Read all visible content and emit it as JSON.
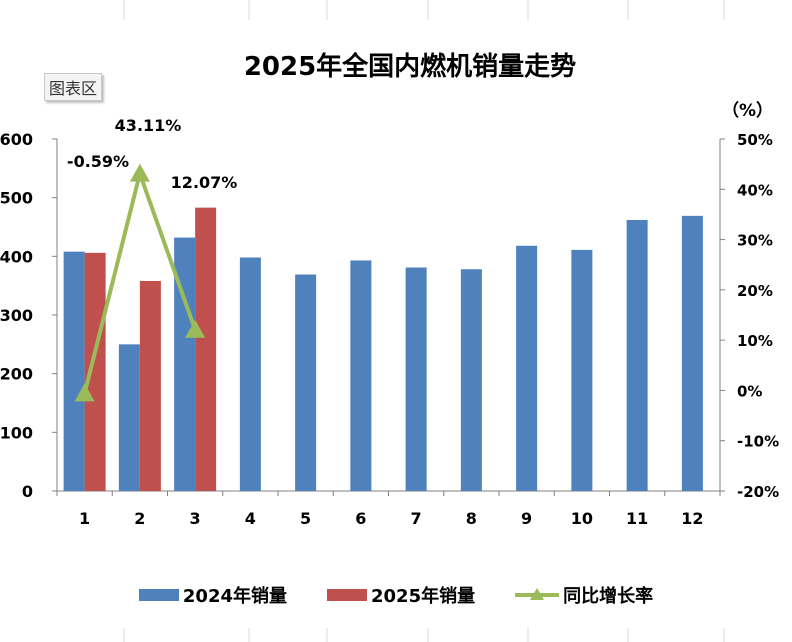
{
  "chart_data": {
    "type": "bar",
    "title": "2025年全国内燃机销量走势",
    "tooltip": "图表区",
    "y_right_unit": "（%）",
    "categories": [
      "1",
      "2",
      "3",
      "4",
      "5",
      "6",
      "7",
      "8",
      "9",
      "10",
      "11",
      "12"
    ],
    "ylim": [
      0,
      600
    ],
    "y_ticks": [
      0,
      100,
      200,
      300,
      400,
      500,
      600
    ],
    "y2lim": [
      -20,
      50
    ],
    "y2_ticks": [
      "-20%",
      "-10%",
      "0%",
      "10%",
      "20%",
      "30%",
      "40%",
      "50%"
    ],
    "series": [
      {
        "name": "2024年销量",
        "type": "bar",
        "axis": "left",
        "color": "#4f81bd",
        "values": [
          408,
          250,
          432,
          398,
          369,
          393,
          381,
          378,
          418,
          411,
          462,
          469
        ]
      },
      {
        "name": "2025年销量",
        "type": "bar",
        "axis": "left",
        "color": "#c0504d",
        "values": [
          406,
          358,
          483,
          null,
          null,
          null,
          null,
          null,
          null,
          null,
          null,
          null
        ]
      },
      {
        "name": "同比增长率",
        "type": "line",
        "axis": "right",
        "color": "#9bbb59",
        "values": [
          -0.59,
          43.11,
          12.07,
          null,
          null,
          null,
          null,
          null,
          null,
          null,
          null,
          null
        ]
      }
    ],
    "data_labels": [
      "-0.59%",
      "43.11%",
      "12.07%"
    ],
    "legend_position": "bottom",
    "grid": false
  }
}
